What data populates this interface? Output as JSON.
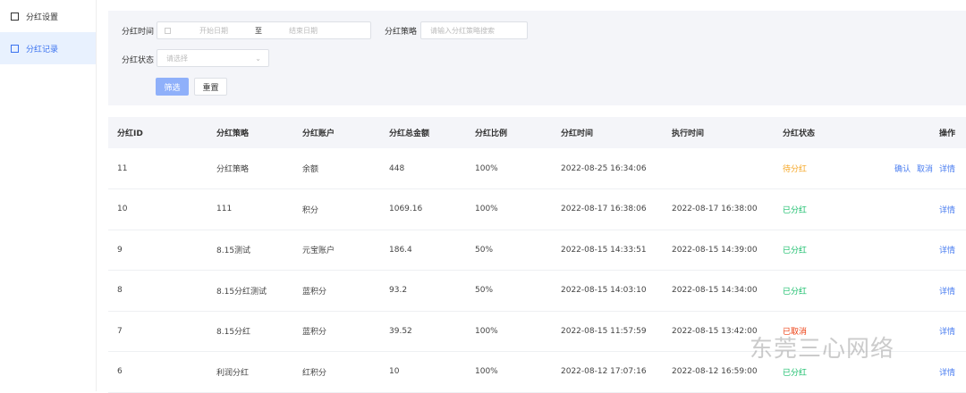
{
  "sidebar": {
    "items": [
      {
        "label": "分红设置",
        "icon": "document-icon"
      },
      {
        "label": "分红记录",
        "icon": "clipboard-icon",
        "active": true
      }
    ]
  },
  "filter": {
    "time_label": "分红时间",
    "start_placeholder": "开始日期",
    "range_sep": "至",
    "end_placeholder": "结束日期",
    "strategy_label": "分红策略",
    "strategy_placeholder": "请输入分红策略搜索",
    "status_label": "分红状态",
    "status_placeholder": "请选择",
    "submit_label": "筛选",
    "reset_label": "重置"
  },
  "table": {
    "headers": [
      "分红ID",
      "分红策略",
      "分红账户",
      "分红总金额",
      "分红比例",
      "分红时间",
      "执行时间",
      "分红状态",
      "操作"
    ],
    "rows": [
      {
        "id": "11",
        "strategy": "分红策略",
        "account": "余额",
        "amount": "448",
        "ratio": "100%",
        "time": "2022-08-25 16:34:06",
        "exec": "",
        "status": "待分红",
        "status_color": "#f5a623",
        "actions": [
          "确认",
          "取消",
          "详情"
        ]
      },
      {
        "id": "10",
        "strategy": "111",
        "account": "积分",
        "amount": "1069.16",
        "ratio": "100%",
        "time": "2022-08-17 16:38:06",
        "exec": "2022-08-17 16:38:00",
        "status": "已分红",
        "status_color": "#19be6b",
        "actions": [
          "详情"
        ]
      },
      {
        "id": "9",
        "strategy": "8.15测试",
        "account": "元宝账户",
        "amount": "186.4",
        "ratio": "50%",
        "time": "2022-08-15 14:33:51",
        "exec": "2022-08-15 14:39:00",
        "status": "已分红",
        "status_color": "#19be6b",
        "actions": [
          "详情"
        ]
      },
      {
        "id": "8",
        "strategy": "8.15分红测试",
        "account": "蓝积分",
        "amount": "93.2",
        "ratio": "50%",
        "time": "2022-08-15 14:03:10",
        "exec": "2022-08-15 14:34:00",
        "status": "已分红",
        "status_color": "#19be6b",
        "actions": [
          "详情"
        ]
      },
      {
        "id": "7",
        "strategy": "8.15分红",
        "account": "蓝积分",
        "amount": "39.52",
        "ratio": "100%",
        "time": "2022-08-15 11:57:59",
        "exec": "2022-08-15 13:42:00",
        "status": "已取消",
        "status_color": "#ed4014",
        "actions": [
          "详情"
        ]
      },
      {
        "id": "6",
        "strategy": "利润分红",
        "account": "红积分",
        "amount": "10",
        "ratio": "100%",
        "time": "2022-08-12 17:07:16",
        "exec": "2022-08-12 16:59:00",
        "status": "已分红",
        "status_color": "#19be6b",
        "actions": [
          "详情"
        ]
      }
    ]
  },
  "watermark": "东莞三心网络",
  "colors": {
    "primary": "#3a72f0",
    "filter_bg": "#f4f5f9"
  }
}
